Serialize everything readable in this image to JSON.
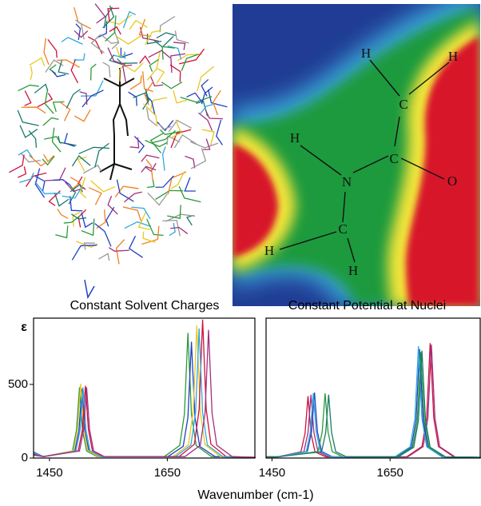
{
  "molecule_map": {
    "atoms": [
      "H",
      "H",
      "C",
      "H",
      "C",
      "N",
      "O",
      "H",
      "C",
      "H"
    ]
  },
  "chart_data": [
    {
      "type": "line",
      "title": "Constant Solvent Charges",
      "ylabel": "ε",
      "xlim": [
        1423,
        1800
      ],
      "ylim": [
        0,
        950
      ],
      "xticks": [
        1450,
        1650
      ],
      "yticks": [
        0,
        500
      ],
      "series": [
        {
          "color": "#2a9a3a",
          "x": [
            1423,
            1440,
            1489,
            1496,
            1501,
            1506,
            1513,
            1531,
            1645,
            1671,
            1679,
            1685,
            1691,
            1699,
            1725,
            1800
          ],
          "values": [
            30,
            10,
            48,
            192,
            480,
            192,
            48,
            10,
            10,
            85,
            298,
            850,
            298,
            85,
            10,
            5
          ]
        },
        {
          "color": "#2040c0",
          "x": [
            1423,
            1440,
            1493,
            1500,
            1505,
            1510,
            1517,
            1535,
            1651,
            1677,
            1685,
            1691,
            1697,
            1705,
            1731,
            1800
          ],
          "values": [
            40,
            10,
            47,
            188,
            470,
            188,
            47,
            10,
            10,
            79,
            277,
            790,
            277,
            79,
            10,
            5
          ]
        },
        {
          "color": "#e8c820",
          "x": [
            1423,
            1440,
            1491,
            1498,
            1503,
            1508,
            1515,
            1533,
            1660,
            1686,
            1694,
            1700,
            1706,
            1714,
            1740,
            1800
          ],
          "values": [
            20,
            10,
            51,
            202,
            505,
            202,
            51,
            10,
            10,
            90,
            315,
            900,
            315,
            90,
            10,
            5
          ]
        },
        {
          "color": "#d0103a",
          "x": [
            1423,
            1440,
            1499,
            1506,
            1511,
            1516,
            1523,
            1541,
            1670,
            1696,
            1704,
            1710,
            1716,
            1724,
            1750,
            1800
          ],
          "values": [
            25,
            10,
            49,
            196,
            490,
            196,
            49,
            10,
            10,
            94,
            329,
            940,
            329,
            94,
            10,
            5
          ]
        },
        {
          "color": "#30a8e0",
          "x": [
            1423,
            1440,
            1495,
            1502,
            1507,
            1512,
            1519,
            1537,
            1664,
            1690,
            1698,
            1704,
            1710,
            1718,
            1744,
            1800
          ],
          "values": [
            35,
            10,
            48,
            192,
            480,
            192,
            48,
            10,
            10,
            88,
            308,
            880,
            308,
            88,
            10,
            5
          ]
        },
        {
          "color": "#a03080",
          "x": [
            1423,
            1440,
            1501,
            1508,
            1513,
            1518,
            1525,
            1543,
            1680,
            1706,
            1714,
            1720,
            1726,
            1734,
            1760,
            1800
          ],
          "values": [
            20,
            10,
            48,
            192,
            480,
            192,
            48,
            10,
            10,
            87,
            305,
            870,
            305,
            87,
            10,
            5
          ]
        }
      ]
    },
    {
      "type": "line",
      "title": "Constant Potential at Nuclei",
      "xlim": [
        1440,
        1804
      ],
      "ylim": [
        0,
        950
      ],
      "xticks": [
        1450,
        1650
      ],
      "series": [
        {
          "color": "#d0103a",
          "x": [
            1440,
            1460,
            1499,
            1506,
            1511,
            1516,
            1523,
            1541,
            1678,
            1704,
            1712,
            1718,
            1724,
            1732,
            1758,
            1804
          ],
          "values": [
            8,
            8,
            42,
            168,
            420,
            168,
            42,
            8,
            8,
            78,
            273,
            780,
            273,
            78,
            8,
            5
          ]
        },
        {
          "color": "#a03080",
          "x": [
            1440,
            1460,
            1504,
            1511,
            1516,
            1521,
            1528,
            1546,
            1680,
            1706,
            1714,
            1720,
            1726,
            1734,
            1760,
            1804
          ],
          "values": [
            8,
            8,
            43,
            172,
            430,
            172,
            43,
            8,
            8,
            77,
            270,
            770,
            270,
            77,
            8,
            5
          ]
        },
        {
          "color": "#2040c0",
          "x": [
            1440,
            1460,
            1510,
            1517,
            1522,
            1527,
            1534,
            1552,
            1660,
            1686,
            1694,
            1700,
            1706,
            1714,
            1740,
            1804
          ],
          "values": [
            8,
            8,
            45,
            178,
            445,
            178,
            45,
            8,
            8,
            74,
            259,
            740,
            259,
            74,
            8,
            5
          ]
        },
        {
          "color": "#2a9a3a",
          "x": [
            1440,
            1460,
            1528,
            1535,
            1540,
            1545,
            1552,
            1570,
            1662,
            1688,
            1696,
            1702,
            1708,
            1716,
            1742,
            1804
          ],
          "values": [
            8,
            8,
            44,
            176,
            440,
            176,
            44,
            8,
            8,
            72,
            252,
            720,
            252,
            72,
            8,
            5
          ]
        },
        {
          "color": "#30a8e0",
          "x": [
            1440,
            1460,
            1508,
            1515,
            1520,
            1525,
            1532,
            1550,
            1658,
            1684,
            1692,
            1698,
            1704,
            1712,
            1738,
            1804
          ],
          "values": [
            8,
            8,
            44,
            176,
            440,
            176,
            44,
            8,
            8,
            76,
            266,
            760,
            266,
            76,
            8,
            5
          ]
        },
        {
          "color": "#1a7a6a",
          "x": [
            1440,
            1460,
            1534,
            1541,
            1546,
            1551,
            1558,
            1576,
            1664,
            1690,
            1698,
            1704,
            1710,
            1718,
            1744,
            1804
          ],
          "values": [
            8,
            8,
            43,
            172,
            430,
            172,
            43,
            8,
            8,
            73,
            256,
            730,
            256,
            73,
            8,
            5
          ]
        }
      ]
    }
  ],
  "xlabel": "Wavenumber (cm-1)"
}
